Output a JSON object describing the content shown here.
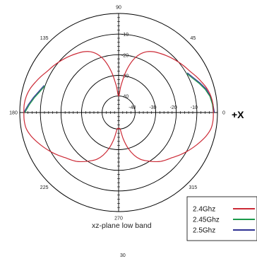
{
  "chart_data": {
    "type": "polar",
    "caption": "xz-plane low band",
    "axis_label": "+X",
    "angle_labels": [
      "0",
      "45",
      "90",
      "135",
      "180",
      "225",
      "270",
      "315"
    ],
    "radial_ticks": [
      "-10",
      "-20",
      "-30",
      "-40"
    ],
    "radial_range_db": [
      -48,
      0
    ],
    "series": [
      {
        "name": "2.4Ghz",
        "color": "#cc2a36",
        "angles": [
          0,
          5,
          10,
          15,
          20,
          25,
          30,
          35,
          40,
          45,
          50,
          55,
          60,
          65,
          70,
          75,
          80,
          85,
          90,
          95,
          100,
          105,
          110,
          115,
          120,
          125,
          130,
          135,
          140,
          145,
          150,
          155,
          160,
          165,
          170,
          175,
          180,
          185,
          190,
          195,
          200,
          205,
          210,
          215,
          220,
          225,
          230,
          235,
          240,
          245,
          250,
          255,
          260,
          265,
          270,
          275,
          280,
          285,
          290,
          295,
          300,
          305,
          310,
          315,
          320,
          325,
          330,
          335,
          340,
          345,
          350,
          355
        ],
        "values": [
          -2,
          -2,
          -2.5,
          -3.5,
          -5,
          -6.5,
          -8,
          -9,
          -10,
          -11,
          -12,
          -13,
          -14,
          -15.5,
          -18,
          -22,
          -28,
          -35,
          -40,
          -35,
          -28,
          -22,
          -18,
          -15.5,
          -14,
          -13,
          -12,
          -11,
          -10,
          -9,
          -8,
          -6.5,
          -5,
          -3.5,
          -2.5,
          -2,
          -2,
          -2,
          -2.5,
          -4,
          -6,
          -8,
          -10,
          -12,
          -14,
          -15.5,
          -17,
          -19,
          -21,
          -23,
          -26,
          -30,
          -35,
          -40,
          -40,
          -40,
          -35,
          -30,
          -26,
          -23,
          -21,
          -19,
          -17,
          -15.5,
          -14,
          -12,
          -10,
          -8,
          -6,
          -4,
          -2.5,
          -2
        ]
      },
      {
        "name": "2.45Ghz",
        "color": "#1a9a4a",
        "angles": [
          0,
          5,
          10,
          15,
          20,
          25,
          30,
          160,
          165,
          170,
          175,
          180
        ],
        "values": [
          -2,
          -2.3,
          -3,
          -4.5,
          -6.5,
          -8.5,
          -10,
          -10,
          -8.5,
          -6.5,
          -4.5,
          -2.5
        ]
      },
      {
        "name": "2.5Ghz",
        "color": "#2e3192",
        "angles": [
          0,
          5,
          10,
          15,
          20,
          25,
          30,
          160,
          165,
          170,
          175,
          180
        ],
        "values": [
          -1.5,
          -2,
          -2.8,
          -4,
          -6,
          -8,
          -9.5,
          -9.5,
          -8,
          -6,
          -4,
          -2
        ]
      }
    ],
    "stray_label": "30"
  },
  "legend": {
    "items": [
      {
        "label": "2.4Ghz",
        "color": "#cc2a36"
      },
      {
        "label": "2.45Ghz",
        "color": "#1a9a4a"
      },
      {
        "label": "2.5Ghz",
        "color": "#2e3192"
      }
    ]
  }
}
